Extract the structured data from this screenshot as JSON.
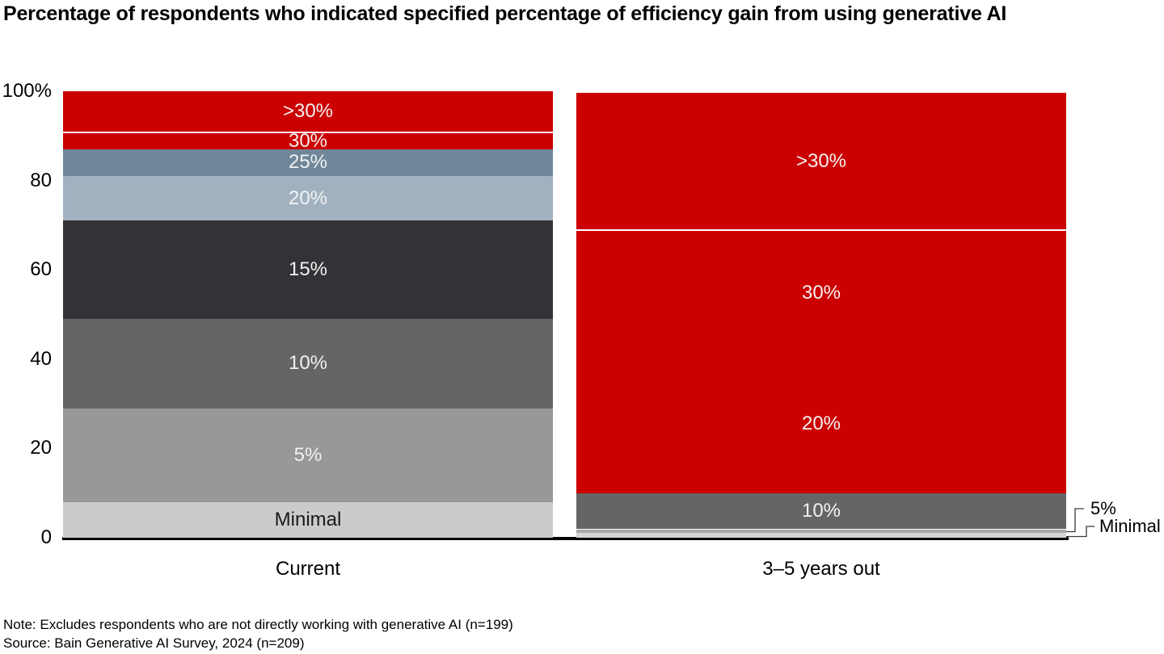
{
  "title": "Percentage of respondents who indicated specified percentage of efficiency gain from using generative AI",
  "footnotes": {
    "note": "Note: Excludes respondents who are not directly working with generative AI (n=199)",
    "source": "Source: Bain Generative AI Survey, 2024 (n=209)"
  },
  "colors": {
    "brand_red": "#cc0000",
    "slate_dark": "#6f8799",
    "slate_light": "#a1b1c0",
    "charcoal": "#323336",
    "gray_dark": "#656565",
    "gray_mid": "#989898",
    "gray_light": "#cbcbcb",
    "axis": "#000000",
    "label_light": "#f2f2f2"
  },
  "chart_data": {
    "type": "bar",
    "variant": "100%-stacked vertical columns",
    "grid": false,
    "ylim": [
      0,
      100
    ],
    "yticks": [
      {
        "label": "100%",
        "value": 100
      },
      {
        "label": "80",
        "value": 80
      },
      {
        "label": "60",
        "value": 60
      },
      {
        "label": "40",
        "value": 40
      },
      {
        "label": "20",
        "value": 20
      },
      {
        "label": "0",
        "value": 0
      }
    ],
    "bars": [
      {
        "category": "Current",
        "segments": [
          {
            "label": "Minimal",
            "value": 8,
            "color": "#cbcbcb",
            "label_color": "#1a1a1a",
            "label_inside": true
          },
          {
            "label": "5%",
            "value": 21,
            "color": "#989898",
            "label_color": "#f2f2f2",
            "label_inside": true
          },
          {
            "label": "10%",
            "value": 20,
            "color": "#656565",
            "label_color": "#f2f2f2",
            "label_inside": true
          },
          {
            "label": "15%",
            "value": 22,
            "color": "#323336",
            "label_color": "#f2f2f2",
            "label_inside": true
          },
          {
            "label": "20%",
            "value": 10,
            "color": "#a1b1c0",
            "label_color": "#f2f2f2",
            "label_inside": true
          },
          {
            "label": "25%",
            "value": 6,
            "color": "#6f8799",
            "label_color": "#f2f2f2",
            "label_inside": true
          },
          {
            "label": "30%",
            "value": 4,
            "color": "#cc0000",
            "label_color": "#f2f2f2",
            "label_inside": true,
            "divider_top": true
          },
          {
            "label": ">30%",
            "value": 9,
            "color": "#cc0000",
            "label_color": "#f2f2f2",
            "label_inside": true
          }
        ]
      },
      {
        "category": "3–5 years out",
        "segments": [
          {
            "label": "Minimal",
            "value": 1,
            "color": "#d6d6d6",
            "label_color": "#1a1a1a",
            "label_inside": false
          },
          {
            "label": "5%",
            "value": 1,
            "color": "#a9a9a9",
            "label_color": "#1a1a1a",
            "label_inside": false,
            "divider_top": true
          },
          {
            "label": "10%",
            "value": 8,
            "color": "#656565",
            "label_color": "#f2f2f2",
            "label_inside": true
          },
          {
            "label": "20%",
            "value": 31,
            "color": "#cc0000",
            "label_color": "#f2f2f2",
            "label_inside": true
          },
          {
            "label": "30%",
            "value": 28,
            "color": "#cc0000",
            "label_color": "#f2f2f2",
            "label_inside": true,
            "divider_top": true
          },
          {
            "label": ">30%",
            "value": 31,
            "color": "#cc0000",
            "label_color": "#f2f2f2",
            "label_inside": true,
            "divider_top": true
          }
        ]
      }
    ]
  }
}
